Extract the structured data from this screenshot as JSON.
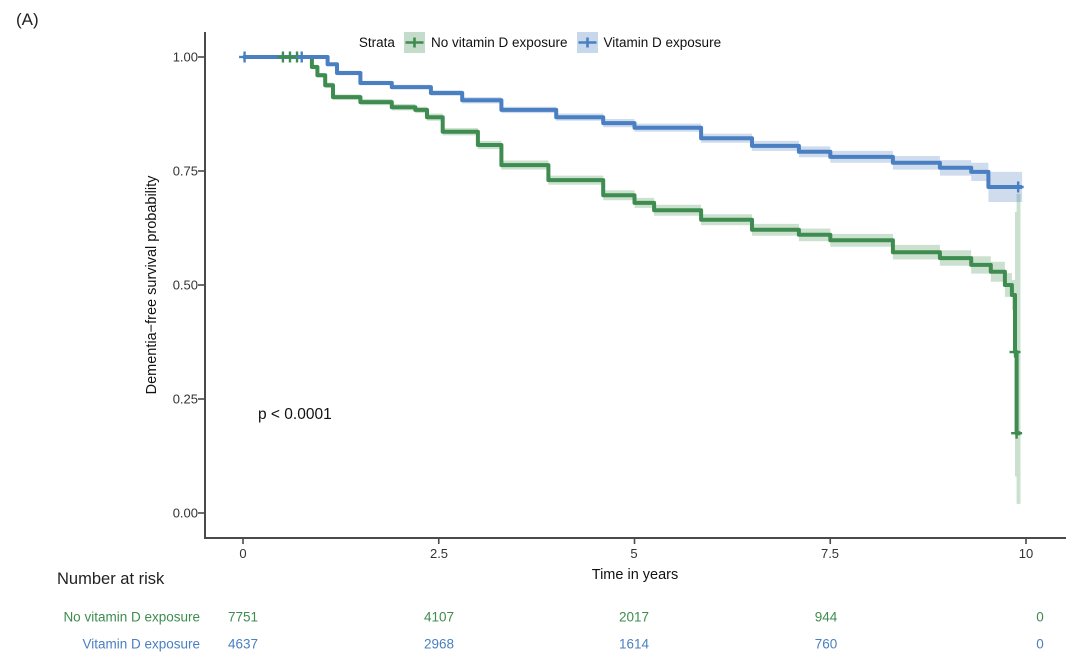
{
  "panel_label": "(A)",
  "legend": {
    "title": "Strata",
    "items": [
      {
        "label": "No vitamin D exposure",
        "color": "#3E8C4F"
      },
      {
        "label": "Vitamin D exposure",
        "color": "#4A7FC1"
      }
    ]
  },
  "annotation": "p < 0.0001",
  "risk_table": {
    "title": "Number at risk",
    "time_points": [
      0,
      2.5,
      5,
      7.5,
      10
    ],
    "rows": [
      {
        "label": "No vitamin D exposure",
        "color": "#3E8C4F",
        "values": [
          "7751",
          "4107",
          "2017",
          "944",
          "0"
        ]
      },
      {
        "label": "Vitamin D exposure",
        "color": "#4A7FC1",
        "values": [
          "4637",
          "2968",
          "1614",
          "760",
          "0"
        ]
      }
    ]
  },
  "chart_data": {
    "type": "line",
    "subtype": "kaplan-meier-survival",
    "title": "",
    "xlabel": "Time in years",
    "ylabel": "Dementia−free survival probability",
    "xlim": [
      0,
      10.5
    ],
    "ylim": [
      0,
      1.05
    ],
    "x_ticks": [
      "0",
      "2.5",
      "5",
      "7.5",
      "10"
    ],
    "x_tick_values": [
      0,
      2.5,
      5,
      7.5,
      10
    ],
    "y_ticks": [
      "1.00",
      "0.75",
      "0.50",
      "0.25",
      "0.00"
    ],
    "y_tick_values": [
      1.0,
      0.75,
      0.5,
      0.25,
      0.0
    ],
    "grid": false,
    "legend_position": "top",
    "annotation_text": "p < 0.0001",
    "series": [
      {
        "name": "No vitamin D exposure",
        "color": "#3E8C4F",
        "points": [
          [
            0,
            1,
            1,
            1
          ],
          [
            0.82,
            1,
            0.997,
            1
          ],
          [
            0.88,
            0.978,
            0.973,
            0.983
          ],
          [
            0.95,
            0.96,
            0.955,
            0.965
          ],
          [
            1.05,
            0.938,
            0.932,
            0.944
          ],
          [
            1.15,
            0.912,
            0.906,
            0.918
          ],
          [
            1.5,
            0.901,
            0.894,
            0.908
          ],
          [
            1.9,
            0.89,
            0.883,
            0.897
          ],
          [
            2.2,
            0.884,
            0.877,
            0.891
          ],
          [
            2.35,
            0.868,
            0.86,
            0.876
          ],
          [
            2.55,
            0.836,
            0.828,
            0.844
          ],
          [
            3.0,
            0.807,
            0.798,
            0.816
          ],
          [
            3.3,
            0.763,
            0.753,
            0.773
          ],
          [
            3.9,
            0.73,
            0.72,
            0.74
          ],
          [
            4.6,
            0.697,
            0.686,
            0.708
          ],
          [
            5.0,
            0.68,
            0.669,
            0.691
          ],
          [
            5.25,
            0.664,
            0.652,
            0.676
          ],
          [
            5.85,
            0.643,
            0.631,
            0.655
          ],
          [
            6.5,
            0.621,
            0.608,
            0.634
          ],
          [
            7.1,
            0.61,
            0.596,
            0.624
          ],
          [
            7.5,
            0.598,
            0.584,
            0.612
          ],
          [
            8.3,
            0.572,
            0.556,
            0.588
          ],
          [
            8.9,
            0.559,
            0.542,
            0.576
          ],
          [
            9.3,
            0.544,
            0.525,
            0.563
          ],
          [
            9.55,
            0.529,
            0.507,
            0.551
          ],
          [
            9.73,
            0.5,
            0.474,
            0.526
          ],
          [
            9.82,
            0.478,
            0.445,
            0.511
          ],
          [
            9.86,
            0.46,
            0.2,
            0.62
          ],
          [
            9.86,
            0.353,
            0.08,
            0.66
          ],
          [
            9.88,
            0.175,
            0.02,
            0.7
          ],
          [
            9.93,
            0.175,
            0.02,
            0.7
          ]
        ],
        "censor_marks": [
          [
            0.51,
            1
          ],
          [
            0.6,
            1
          ],
          [
            0.69,
            1
          ],
          [
            9.86,
            0.353
          ],
          [
            9.88,
            0.175
          ]
        ]
      },
      {
        "name": "Vitamin D exposure",
        "color": "#4A7FC1",
        "points": [
          [
            0,
            1,
            1,
            1
          ],
          [
            1.0,
            1,
            0.997,
            1
          ],
          [
            1.08,
            0.984,
            0.98,
            0.988
          ],
          [
            1.2,
            0.965,
            0.96,
            0.97
          ],
          [
            1.5,
            0.943,
            0.938,
            0.948
          ],
          [
            1.9,
            0.934,
            0.929,
            0.939
          ],
          [
            2.4,
            0.921,
            0.915,
            0.927
          ],
          [
            2.8,
            0.905,
            0.898,
            0.912
          ],
          [
            3.3,
            0.884,
            0.877,
            0.891
          ],
          [
            4.0,
            0.868,
            0.86,
            0.876
          ],
          [
            4.6,
            0.855,
            0.846,
            0.864
          ],
          [
            5.0,
            0.845,
            0.836,
            0.854
          ],
          [
            5.85,
            0.822,
            0.812,
            0.832
          ],
          [
            6.5,
            0.805,
            0.794,
            0.816
          ],
          [
            7.1,
            0.792,
            0.78,
            0.804
          ],
          [
            7.5,
            0.781,
            0.768,
            0.794
          ],
          [
            8.3,
            0.768,
            0.753,
            0.783
          ],
          [
            8.9,
            0.757,
            0.74,
            0.774
          ],
          [
            9.3,
            0.748,
            0.728,
            0.768
          ],
          [
            9.52,
            0.715,
            0.682,
            0.748
          ],
          [
            9.95,
            0.715,
            0.682,
            0.748
          ]
        ],
        "censor_marks": [
          [
            0.02,
            1
          ],
          [
            0.75,
            1
          ],
          [
            9.9,
            0.715
          ]
        ]
      }
    ]
  }
}
